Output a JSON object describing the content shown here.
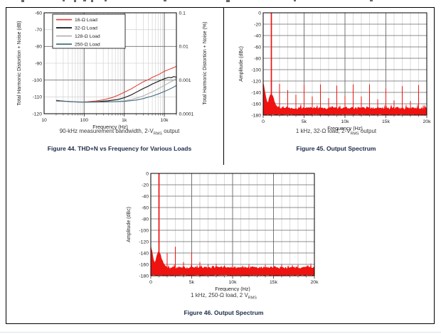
{
  "chart_data": [
    {
      "type": "line",
      "figure_title": "Figure 44. THD+N vs Frequency for Various Loads",
      "caption_pre": "90-kHz measurement bandwidth, 2-V",
      "caption_sub": "RMS",
      "caption_post": " output",
      "xlabel": "Frequency (Hz)",
      "ylabel_left": "Total Harmonic Distortion + Noise (dB)",
      "ylabel_right": "Total Harmonic Distortion + Noise (%)",
      "x_scale": "log",
      "xlim_hz": [
        10,
        20000
      ],
      "ylim_db": [
        -120,
        -60
      ],
      "x_ticks": [
        {
          "f": 10,
          "label": "10"
        },
        {
          "f": 100,
          "label": "100"
        },
        {
          "f": 1000,
          "label": "1k"
        },
        {
          "f": 10000,
          "label": "10k"
        }
      ],
      "y_ticks_left": [
        -60,
        -70,
        -80,
        -90,
        -100,
        -110,
        -120
      ],
      "y_ticks_right": [
        {
          "db": -60,
          "label": "0.1"
        },
        {
          "db": -80,
          "label": "0.01"
        },
        {
          "db": -100,
          "label": "0.001"
        },
        {
          "db": -120,
          "label": "0.0001"
        }
      ],
      "legend_position": "top-left",
      "grid": "log minor verticals, 10 dB horizontals, darker lines at decades",
      "series": [
        {
          "name": "16-Ω Load",
          "color": "#e2453c",
          "points": [
            [
              20,
              -112.0
            ],
            [
              30,
              -112.6
            ],
            [
              50,
              -113.0
            ],
            [
              80,
              -113.1
            ],
            [
              120,
              -112.9
            ],
            [
              200,
              -112.4
            ],
            [
              300,
              -111.7
            ],
            [
              500,
              -110.4
            ],
            [
              700,
              -109.0
            ],
            [
              1000,
              -107.3
            ],
            [
              1500,
              -105.2
            ],
            [
              2000,
              -103.4
            ],
            [
              3000,
              -101.0
            ],
            [
              4000,
              -99.7
            ],
            [
              5000,
              -98.4
            ],
            [
              7000,
              -96.9
            ],
            [
              10000,
              -94.8
            ],
            [
              14000,
              -93.4
            ],
            [
              17000,
              -92.6
            ],
            [
              20000,
              -91.8
            ]
          ]
        },
        {
          "name": "32-Ω Load",
          "color": "#111111",
          "points": [
            [
              20,
              -112.2
            ],
            [
              50,
              -112.9
            ],
            [
              100,
              -113.2
            ],
            [
              200,
              -112.9
            ],
            [
              400,
              -112.3
            ],
            [
              700,
              -111.5
            ],
            [
              1000,
              -110.5
            ],
            [
              1500,
              -108.8
            ],
            [
              2000,
              -107.2
            ],
            [
              3000,
              -105.0
            ],
            [
              4000,
              -103.6
            ],
            [
              5000,
              -102.4
            ],
            [
              7000,
              -100.8
            ],
            [
              10000,
              -99.2
            ],
            [
              13000,
              -98.4
            ],
            [
              15000,
              -98.6
            ],
            [
              17000,
              -97.9
            ],
            [
              20000,
              -98.3
            ]
          ]
        },
        {
          "name": "128-Ω Load",
          "color": "#b3b3b3",
          "points": [
            [
              20,
              -112.5
            ],
            [
              100,
              -113.3
            ],
            [
              300,
              -113.1
            ],
            [
              700,
              -112.7
            ],
            [
              1000,
              -112.3
            ],
            [
              1500,
              -111.5
            ],
            [
              2000,
              -110.8
            ],
            [
              3000,
              -109.4
            ],
            [
              5000,
              -107.0
            ],
            [
              7000,
              -105.2
            ],
            [
              10000,
              -103.2
            ],
            [
              14000,
              -101.2
            ],
            [
              17000,
              -100.2
            ],
            [
              20000,
              -98.9
            ]
          ]
        },
        {
          "name": "250-Ω Load",
          "color": "#44707f",
          "points": [
            [
              20,
              -112.4
            ],
            [
              100,
              -113.1
            ],
            [
              500,
              -112.9
            ],
            [
              1000,
              -112.7
            ],
            [
              2000,
              -111.9
            ],
            [
              3000,
              -111.0
            ],
            [
              5000,
              -109.5
            ],
            [
              7000,
              -108.3
            ],
            [
              10000,
              -106.8
            ],
            [
              14000,
              -105.2
            ],
            [
              17000,
              -104.2
            ],
            [
              20000,
              -103.2
            ]
          ]
        }
      ]
    },
    {
      "type": "line",
      "subtype": "fft_spectrum",
      "figure_title": "Figure 45. Output Spectrum",
      "caption_pre": "1 kHz, 32-Ω load, 2-V",
      "caption_sub": "RMS",
      "caption_post": " output",
      "xlabel": "Frequency (Hz)",
      "ylabel": "Amplitude (dBc)",
      "xlim_hz": [
        0,
        20000
      ],
      "ylim_dbc": [
        -180,
        0
      ],
      "x_ticks": [
        {
          "khz": 0,
          "label": "0"
        },
        {
          "khz": 5,
          "label": "5k"
        },
        {
          "khz": 10,
          "label": "10k"
        },
        {
          "khz": 15,
          "label": "15k"
        },
        {
          "khz": 20,
          "label": "20k"
        }
      ],
      "y_ticks": [
        0,
        -20,
        -40,
        -60,
        -80,
        -100,
        -120,
        -140,
        -160,
        -180
      ],
      "color": "#ee1310",
      "fundamental_khz": 1,
      "fundamental_dbc": 0,
      "dc_spur_dbc": -122,
      "noise_floor_dbc": -168,
      "hump_db": 25,
      "harmonics": [
        {
          "khz": 2,
          "dbc": -125
        },
        {
          "khz": 3,
          "dbc": -136
        },
        {
          "khz": 4,
          "dbc": -144
        },
        {
          "khz": 5,
          "dbc": -127
        },
        {
          "khz": 6,
          "dbc": -147
        },
        {
          "khz": 7,
          "dbc": -126
        },
        {
          "khz": 8,
          "dbc": -150
        },
        {
          "khz": 9,
          "dbc": -128
        },
        {
          "khz": 10,
          "dbc": -146
        },
        {
          "khz": 11,
          "dbc": -126
        },
        {
          "khz": 12,
          "dbc": -147
        },
        {
          "khz": 13,
          "dbc": -126
        },
        {
          "khz": 14,
          "dbc": -152
        },
        {
          "khz": 15,
          "dbc": -133
        },
        {
          "khz": 16,
          "dbc": -154
        },
        {
          "khz": 17,
          "dbc": -129
        },
        {
          "khz": 18,
          "dbc": -155
        },
        {
          "khz": 19,
          "dbc": -127
        },
        {
          "khz": 20,
          "dbc": -149
        }
      ]
    },
    {
      "type": "line",
      "subtype": "fft_spectrum",
      "figure_title": "Figure 46. Output Spectrum",
      "caption_pre": "1 kHz, 250-Ω load, 2 V",
      "caption_sub": "RMS",
      "caption_post": "",
      "xlabel": "Frequency (Hz)",
      "ylabel": "Amplitude (dBc)",
      "xlim_hz": [
        0,
        20000
      ],
      "ylim_dbc": [
        -180,
        0
      ],
      "x_ticks": [
        {
          "khz": 0,
          "label": "0"
        },
        {
          "khz": 5,
          "label": "5k"
        },
        {
          "khz": 10,
          "label": "10k"
        },
        {
          "khz": 15,
          "label": "15k"
        },
        {
          "khz": 20,
          "label": "20k"
        }
      ],
      "y_ticks": [
        0,
        -20,
        -40,
        -60,
        -80,
        -100,
        -120,
        -140,
        -160,
        -180
      ],
      "color": "#ee1310",
      "fundamental_khz": 1,
      "fundamental_dbc": 0,
      "dc_spur_dbc": -125,
      "noise_floor_dbc": -166,
      "hump_db": 28,
      "harmonics": [
        {
          "khz": 2,
          "dbc": -140
        },
        {
          "khz": 3,
          "dbc": -129
        },
        {
          "khz": 4,
          "dbc": -156
        },
        {
          "khz": 5,
          "dbc": -139
        },
        {
          "khz": 6,
          "dbc": -156
        },
        {
          "khz": 7,
          "dbc": -160
        },
        {
          "khz": 8,
          "dbc": -159
        },
        {
          "khz": 9,
          "dbc": -162
        },
        {
          "khz": 10,
          "dbc": -161
        },
        {
          "khz": 12,
          "dbc": -160
        },
        {
          "khz": 14,
          "dbc": -161
        },
        {
          "khz": 16,
          "dbc": -160
        },
        {
          "khz": 18,
          "dbc": -161
        }
      ]
    }
  ]
}
